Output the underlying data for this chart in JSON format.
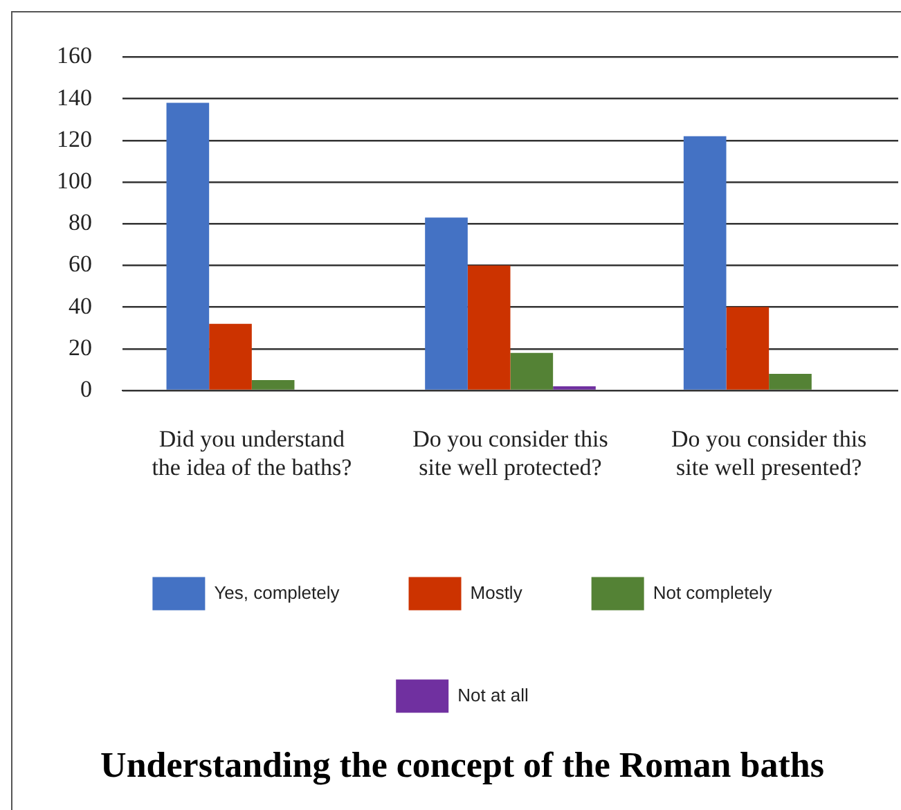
{
  "chart_data": {
    "type": "bar",
    "title": "Understanding the concept of the Roman baths",
    "categories": [
      "Did you understand the idea of the baths?",
      "Do you consider this site well protected?",
      "Do you consider this site well presented?"
    ],
    "series": [
      {
        "name": "Yes, completely",
        "color": "#4472c4",
        "values": [
          138,
          83,
          122
        ]
      },
      {
        "name": "Mostly",
        "color": "#cc3300",
        "values": [
          32,
          60,
          40
        ]
      },
      {
        "name": "Not completely",
        "color": "#548235",
        "values": [
          5,
          18,
          8
        ]
      },
      {
        "name": "Not at all",
        "color": "#7030a0",
        "values": [
          0,
          2,
          0
        ]
      }
    ],
    "ylim": [
      0,
      160
    ],
    "yticks": [
      0,
      20,
      40,
      60,
      80,
      100,
      120,
      140,
      160
    ],
    "grid": "y",
    "legend": "bottom"
  }
}
